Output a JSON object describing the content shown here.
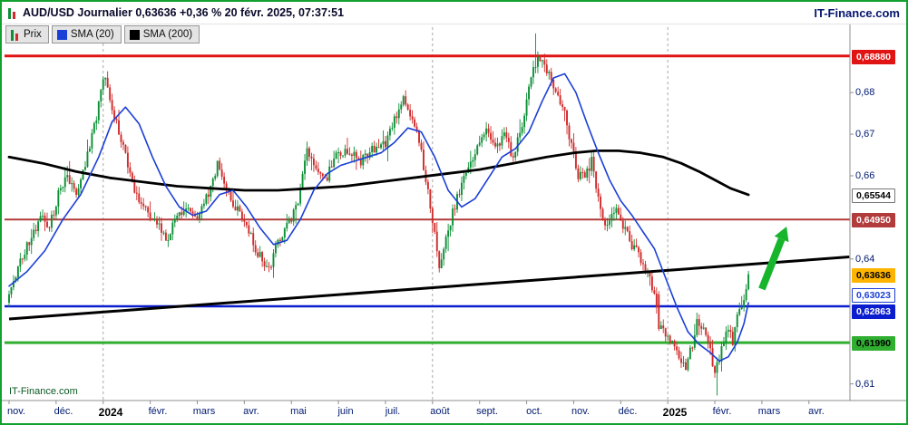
{
  "window": {
    "title": "AUD/USD Journalier 0,63636 +0,36 % 20 févr. 2025, 07:37:51",
    "brand": "IT-Finance.com",
    "watermark": "IT-Finance.com",
    "frame_color": "#12a02e"
  },
  "legend": [
    {
      "label": "Prix",
      "swatch": "candles"
    },
    {
      "label": "SMA (20)",
      "swatch": "#1b3fd6"
    },
    {
      "label": "SMA (200)",
      "swatch": "#000000"
    }
  ],
  "chart_data": {
    "type": "candlestick",
    "title": "AUD/USD Journalier",
    "instrument": "AUD/USD",
    "timeframe": "Journalier",
    "last_price": 0.63636,
    "change_pct": "+0,36 %",
    "timestamp": "20 févr. 2025, 07:37:51",
    "ylim": [
      0.606,
      0.6957
    ],
    "x_months": [
      {
        "label": "nov.",
        "start_day": 0
      },
      {
        "label": "déc.",
        "start_day": 21
      },
      {
        "label": "2024",
        "start_day": 42,
        "bold": true
      },
      {
        "label": "févr.",
        "start_day": 63
      },
      {
        "label": "mars",
        "start_day": 84
      },
      {
        "label": "avr.",
        "start_day": 105
      },
      {
        "label": "mai",
        "start_day": 126
      },
      {
        "label": "juin",
        "start_day": 147
      },
      {
        "label": "juil.",
        "start_day": 168
      },
      {
        "label": "août",
        "start_day": 189
      },
      {
        "label": "sept.",
        "start_day": 210
      },
      {
        "label": "oct.",
        "start_day": 231
      },
      {
        "label": "nov.",
        "start_day": 252
      },
      {
        "label": "déc.",
        "start_day": 273
      },
      {
        "label": "2025",
        "start_day": 294,
        "bold": true
      },
      {
        "label": "févr.",
        "start_day": 315
      },
      {
        "label": "mars",
        "start_day": 336
      },
      {
        "label": "avr.",
        "start_day": 357
      }
    ],
    "axis_ticks": [
      {
        "value": 0.68,
        "label": "0,68"
      },
      {
        "value": 0.67,
        "label": "0,67"
      },
      {
        "value": 0.66,
        "label": "0,66"
      },
      {
        "value": 0.64,
        "label": "0,64"
      },
      {
        "value": 0.61,
        "label": "0,61"
      }
    ],
    "levels": [
      {
        "value": 0.6888,
        "label": "0,68880",
        "color": "#e11414",
        "width": 3,
        "text_color": "#ffffff",
        "dy": 0
      },
      {
        "value": 0.6495,
        "label": "0,64950",
        "color": "#b23b3b",
        "width": 2,
        "text_color": "#ffffff",
        "dy": 0
      },
      {
        "value": 0.62863,
        "label": "0,62863",
        "color": "#0b1ecf",
        "width": 2.5,
        "text_color": "#ffffff",
        "dy": 5
      },
      {
        "value": 0.6199,
        "label": "0,61990",
        "color": "#2fae2f",
        "width": 3,
        "text_color": "#000000",
        "dy": 0
      }
    ],
    "last_price_marker": {
      "value": 0.63636,
      "label": "0,63636",
      "bg": "#ffb400",
      "text_color": "#000000"
    },
    "sma20": {
      "period": 20,
      "color": "#1b3fd6",
      "current": 0.63023,
      "current_label": "0,63023",
      "anchors": [
        [
          0,
          0.6335
        ],
        [
          8,
          0.637
        ],
        [
          16,
          0.642
        ],
        [
          24,
          0.6495
        ],
        [
          32,
          0.6555
        ],
        [
          40,
          0.6645
        ],
        [
          46,
          0.673
        ],
        [
          52,
          0.6765
        ],
        [
          58,
          0.6725
        ],
        [
          64,
          0.6645
        ],
        [
          70,
          0.6575
        ],
        [
          76,
          0.6525
        ],
        [
          82,
          0.6505
        ],
        [
          88,
          0.6515
        ],
        [
          94,
          0.6555
        ],
        [
          100,
          0.6565
        ],
        [
          106,
          0.6525
        ],
        [
          112,
          0.6475
        ],
        [
          118,
          0.6435
        ],
        [
          124,
          0.6445
        ],
        [
          130,
          0.6495
        ],
        [
          136,
          0.6565
        ],
        [
          142,
          0.6605
        ],
        [
          148,
          0.6625
        ],
        [
          154,
          0.6635
        ],
        [
          160,
          0.6645
        ],
        [
          166,
          0.6655
        ],
        [
          172,
          0.668
        ],
        [
          178,
          0.6715
        ],
        [
          184,
          0.6705
        ],
        [
          190,
          0.6645
        ],
        [
          196,
          0.6565
        ],
        [
          202,
          0.6525
        ],
        [
          208,
          0.6545
        ],
        [
          214,
          0.6595
        ],
        [
          220,
          0.6645
        ],
        [
          226,
          0.6665
        ],
        [
          232,
          0.6705
        ],
        [
          238,
          0.678
        ],
        [
          243,
          0.6835
        ],
        [
          248,
          0.6845
        ],
        [
          253,
          0.68
        ],
        [
          258,
          0.6725
        ],
        [
          263,
          0.6655
        ],
        [
          268,
          0.659
        ],
        [
          273,
          0.654
        ],
        [
          278,
          0.6505
        ],
        [
          283,
          0.6465
        ],
        [
          288,
          0.6425
        ],
        [
          293,
          0.6355
        ],
        [
          298,
          0.6285
        ],
        [
          303,
          0.6225
        ],
        [
          308,
          0.6195
        ],
        [
          313,
          0.6175
        ],
        [
          317,
          0.6155
        ],
        [
          321,
          0.6165
        ],
        [
          325,
          0.62
        ],
        [
          328,
          0.6245
        ],
        [
          330,
          0.6295
        ]
      ]
    },
    "sma200": {
      "period": 200,
      "color": "#000000",
      "current": 0.65544,
      "current_label": "0,65544",
      "anchors": [
        [
          0,
          0.6645
        ],
        [
          15,
          0.663
        ],
        [
          30,
          0.661
        ],
        [
          45,
          0.6595
        ],
        [
          60,
          0.6585
        ],
        [
          75,
          0.6575
        ],
        [
          90,
          0.657
        ],
        [
          105,
          0.6565
        ],
        [
          120,
          0.6565
        ],
        [
          135,
          0.657
        ],
        [
          150,
          0.6575
        ],
        [
          165,
          0.6585
        ],
        [
          180,
          0.6595
        ],
        [
          195,
          0.6605
        ],
        [
          210,
          0.6615
        ],
        [
          225,
          0.663
        ],
        [
          240,
          0.6645
        ],
        [
          252,
          0.6655
        ],
        [
          262,
          0.666
        ],
        [
          272,
          0.666
        ],
        [
          282,
          0.6655
        ],
        [
          292,
          0.6645
        ],
        [
          300,
          0.663
        ],
        [
          308,
          0.661
        ],
        [
          315,
          0.659
        ],
        [
          322,
          0.657
        ],
        [
          330,
          0.65544
        ]
      ]
    },
    "price_anchors": [
      [
        0,
        0.6315
      ],
      [
        4,
        0.638
      ],
      [
        9,
        0.6445
      ],
      [
        14,
        0.65
      ],
      [
        18,
        0.6475
      ],
      [
        22,
        0.6555
      ],
      [
        26,
        0.66
      ],
      [
        30,
        0.6555
      ],
      [
        34,
        0.663
      ],
      [
        38,
        0.672
      ],
      [
        43,
        0.6845
      ],
      [
        47,
        0.674
      ],
      [
        51,
        0.667
      ],
      [
        56,
        0.657
      ],
      [
        61,
        0.6515
      ],
      [
        66,
        0.6495
      ],
      [
        70,
        0.6445
      ],
      [
        75,
        0.6505
      ],
      [
        80,
        0.6525
      ],
      [
        84,
        0.6505
      ],
      [
        89,
        0.656
      ],
      [
        93,
        0.6625
      ],
      [
        97,
        0.6575
      ],
      [
        101,
        0.6525
      ],
      [
        105,
        0.649
      ],
      [
        110,
        0.6425
      ],
      [
        116,
        0.6375
      ],
      [
        120,
        0.6445
      ],
      [
        125,
        0.6485
      ],
      [
        129,
        0.653
      ],
      [
        133,
        0.667
      ],
      [
        137,
        0.6605
      ],
      [
        142,
        0.66
      ],
      [
        147,
        0.6655
      ],
      [
        152,
        0.666
      ],
      [
        157,
        0.6635
      ],
      [
        162,
        0.666
      ],
      [
        168,
        0.6675
      ],
      [
        172,
        0.6735
      ],
      [
        176,
        0.6785
      ],
      [
        180,
        0.6735
      ],
      [
        184,
        0.6655
      ],
      [
        188,
        0.6525
      ],
      [
        192,
        0.6385
      ],
      [
        196,
        0.6475
      ],
      [
        200,
        0.6545
      ],
      [
        205,
        0.6625
      ],
      [
        209,
        0.667
      ],
      [
        213,
        0.6715
      ],
      [
        217,
        0.667
      ],
      [
        221,
        0.6695
      ],
      [
        225,
        0.6645
      ],
      [
        229,
        0.6725
      ],
      [
        233,
        0.6835
      ],
      [
        236,
        0.6885
      ],
      [
        239,
        0.687
      ],
      [
        242,
        0.6825
      ],
      [
        245,
        0.679
      ],
      [
        248,
        0.6745
      ],
      [
        251,
        0.6675
      ],
      [
        254,
        0.66
      ],
      [
        257,
        0.6595
      ],
      [
        260,
        0.6635
      ],
      [
        263,
        0.654
      ],
      [
        266,
        0.6485
      ],
      [
        269,
        0.6505
      ],
      [
        272,
        0.6515
      ],
      [
        275,
        0.6465
      ],
      [
        278,
        0.6435
      ],
      [
        281,
        0.641
      ],
      [
        284,
        0.6375
      ],
      [
        287,
        0.6335
      ],
      [
        290,
        0.6245
      ],
      [
        293,
        0.6215
      ],
      [
        296,
        0.62
      ],
      [
        299,
        0.617
      ],
      [
        302,
        0.6145
      ],
      [
        305,
        0.6195
      ],
      [
        307,
        0.6245
      ],
      [
        310,
        0.6225
      ],
      [
        313,
        0.6175
      ],
      [
        315,
        0.613
      ],
      [
        317,
        0.6155
      ],
      [
        319,
        0.6205
      ],
      [
        321,
        0.6235
      ],
      [
        323,
        0.6205
      ],
      [
        325,
        0.6265
      ],
      [
        327,
        0.6285
      ],
      [
        329,
        0.632
      ],
      [
        330,
        0.63636
      ]
    ],
    "candles": {
      "count": 331,
      "seed": 11,
      "up_color": "#0c8f35",
      "down_color": "#cf2b2b"
    },
    "key_candles": [
      {
        "day": 235,
        "high": 0.6942
      },
      {
        "day": 290,
        "open": 0.6315,
        "close": 0.6232
      },
      {
        "day": 316,
        "low": 0.6072
      },
      {
        "day": 330,
        "close": 0.63636
      }
    ],
    "trendline": {
      "start_day": 0,
      "start_price": 0.6256,
      "end_day": 375,
      "end_price": 0.6405,
      "color": "#000000",
      "width": 3
    },
    "arrow": {
      "start_day": 336,
      "start_price": 0.6328,
      "end_day": 347,
      "end_price": 0.6478,
      "color": "#17b52c"
    },
    "dashed_vlines_days": [
      42,
      189,
      294
    ]
  }
}
